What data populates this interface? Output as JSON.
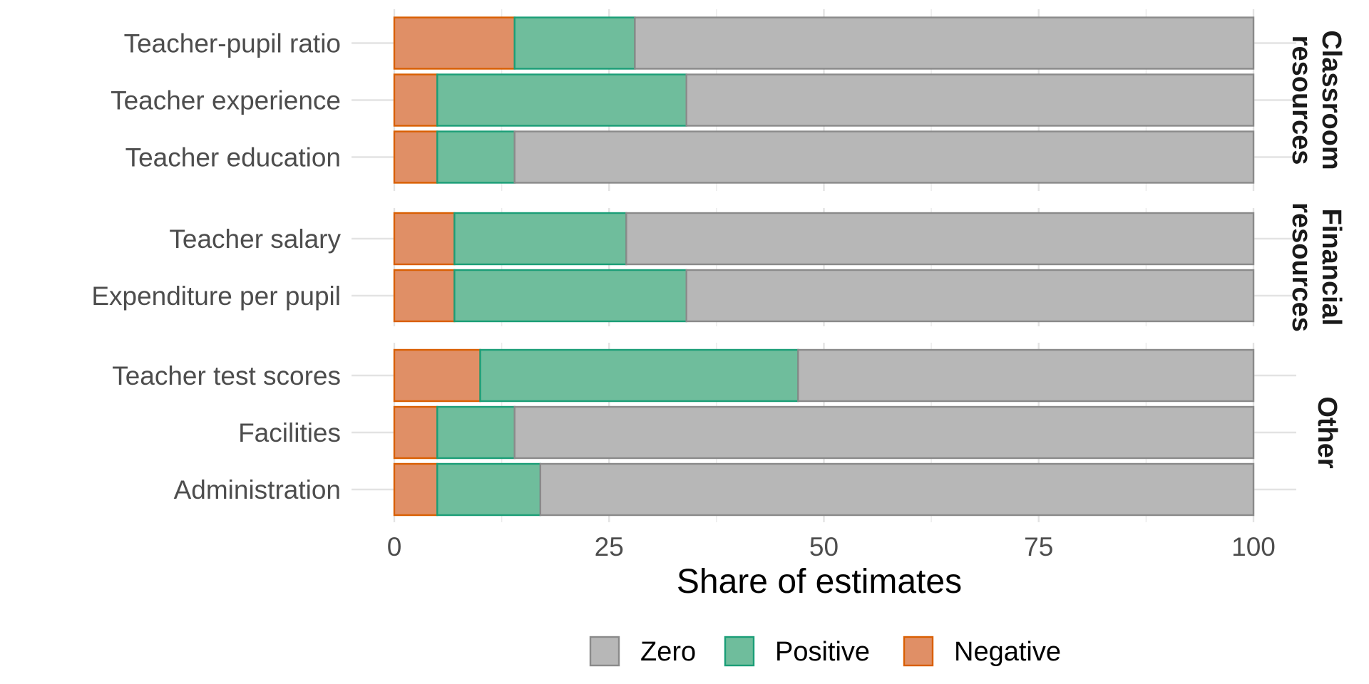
{
  "chart_data": {
    "type": "bar",
    "orientation": "horizontal",
    "stacked": true,
    "xlabel": "Share of estimates",
    "ylabel": "",
    "xlim": [
      0,
      100
    ],
    "xticks": [
      "0",
      "25",
      "50",
      "75",
      "100"
    ],
    "grid": true,
    "legend_position": "bottom",
    "legend": [
      "Zero",
      "Positive",
      "Negative"
    ],
    "colors": {
      "Zero": {
        "fill": "#b7b7b7",
        "stroke": "#8a8a8a"
      },
      "Positive": {
        "fill": "#6fbd9c",
        "stroke": "#1b9e77"
      },
      "Negative": {
        "fill": "#e08f66",
        "stroke": "#d95f02"
      }
    },
    "panels": [
      {
        "label_lines": [
          "Classroom",
          "resources"
        ],
        "categories": [
          "Teacher-pupil ratio",
          "Teacher experience",
          "Teacher education"
        ],
        "series": [
          {
            "name": "Negative",
            "values": [
              14,
              5,
              5
            ]
          },
          {
            "name": "Positive",
            "values": [
              14,
              29,
              9
            ]
          },
          {
            "name": "Zero",
            "values": [
              72,
              66,
              86
            ]
          }
        ]
      },
      {
        "label_lines": [
          "Financial",
          "resources"
        ],
        "categories": [
          "Teacher salary",
          "Expenditure per pupil"
        ],
        "series": [
          {
            "name": "Negative",
            "values": [
              7,
              7
            ]
          },
          {
            "name": "Positive",
            "values": [
              20,
              27
            ]
          },
          {
            "name": "Zero",
            "values": [
              73,
              66
            ]
          }
        ]
      },
      {
        "label_lines": [
          "Other"
        ],
        "categories": [
          "Teacher test scores",
          "Facilities",
          "Administration"
        ],
        "series": [
          {
            "name": "Negative",
            "values": [
              10,
              5,
              5
            ]
          },
          {
            "name": "Positive",
            "values": [
              37,
              9,
              12
            ]
          },
          {
            "name": "Zero",
            "values": [
              53,
              86,
              83
            ]
          }
        ]
      }
    ]
  }
}
